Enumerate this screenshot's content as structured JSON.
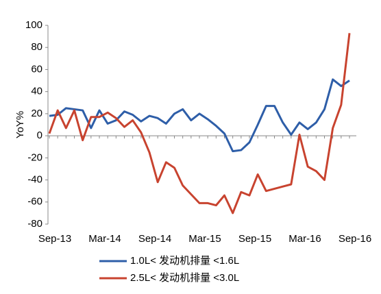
{
  "chart_data": {
    "type": "line",
    "y_label": "YoY%",
    "categories": [
      "Sep-13",
      null,
      null,
      null,
      null,
      null,
      "Mar-14",
      null,
      null,
      null,
      null,
      null,
      "Sep-14",
      null,
      null,
      null,
      null,
      null,
      "Mar-15",
      null,
      null,
      null,
      null,
      null,
      "Sep-15",
      null,
      null,
      null,
      null,
      null,
      "Mar-16",
      null,
      null,
      null,
      null,
      null,
      "Sep-16"
    ],
    "series": [
      {
        "name": "1.0L< 发动机排量 <1.6L",
        "color": "#2e5ea8",
        "values": [
          18,
          19,
          25,
          24,
          23,
          7,
          23,
          11,
          14,
          22,
          19,
          13,
          18,
          16,
          11,
          20,
          24,
          14,
          20,
          15,
          9,
          2,
          -14,
          -13,
          -6,
          10,
          27,
          27,
          12,
          1,
          12,
          6,
          12,
          24,
          51,
          45,
          50
        ]
      },
      {
        "name": "2.5L< 发动机排量 <3.0L",
        "color": "#c8432f",
        "values": [
          2,
          23,
          7,
          23,
          -4,
          17,
          17,
          21,
          16,
          8,
          14,
          3,
          -15,
          -42,
          -24,
          -29,
          -45,
          -53,
          -61,
          -61,
          -63,
          -54,
          -70,
          -51,
          -54,
          -35,
          -50,
          -48,
          -46,
          -44,
          1,
          -28,
          -32,
          -40,
          7,
          28,
          93
        ]
      }
    ],
    "ylim": [
      -80,
      100
    ],
    "yticks": [
      -80,
      -60,
      -40,
      -20,
      0,
      20,
      40,
      60,
      80,
      100
    ],
    "legend": "bottom"
  }
}
